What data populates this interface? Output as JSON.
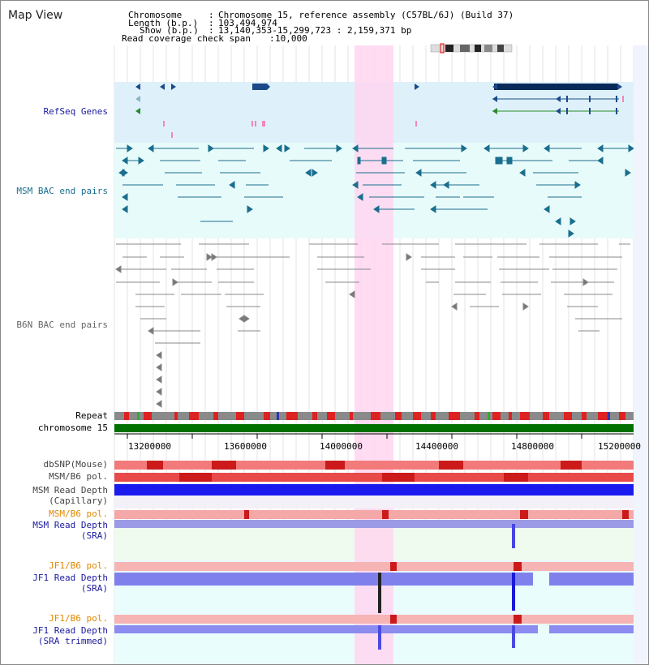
{
  "title": "Map View",
  "info": {
    "chromosome_label": "Chromosome",
    "chromosome_value": "Chromosome 15, reference assembly (C57BL/6J) (Build 37)",
    "length_label": "Length (b.p.)",
    "length_value": "103,494,974",
    "show_label": "Show (b.p.)",
    "show_value": "13,140,353-15,299,723 : 2,159,371 bp",
    "coverage_label": "Read coverage check span",
    "coverage_value": "10,000"
  },
  "tracks": {
    "refseq": "RefSeq Genes",
    "msm_bac": "MSM BAC end pairs",
    "b6n_bac": "B6N BAC end pairs",
    "repeat": "Repeat",
    "chromosome": "chromosome 15",
    "dbsnp": "dbSNP(Mouse)",
    "msm_b6_pol": "MSM/B6 pol.",
    "msm_depth_cap_1": "MSM Read Depth",
    "msm_depth_cap_2": "(Capillary)",
    "msm_b6_pol2": "MSM/B6 pol.",
    "msm_depth_sra_1": "MSM Read Depth",
    "msm_depth_sra_2": "(SRA)",
    "jf1_b6_pol": "JF1/B6 pol.",
    "jf1_depth_sra_1": "JF1 Read Depth",
    "jf1_depth_sra_2": "(SRA)",
    "jf1_b6_pol2": "JF1/B6 pol.",
    "jf1_depth_trim_1": "JF1 Read Depth",
    "jf1_depth_trim_2": "(SRA trimmed)"
  },
  "axis_ticks": [
    "13200000",
    "13600000",
    "14000000",
    "14400000",
    "14800000",
    "15200000"
  ],
  "colors": {
    "refseq_label": "#1a1aa0",
    "msm_bac_label": "#1a6e8e",
    "b6n_label": "#666666",
    "orange_label": "#e08800",
    "blue_label": "#1a1aa0",
    "highlight": "#ffd6f0",
    "chromosome_bar": "#007000"
  }
}
